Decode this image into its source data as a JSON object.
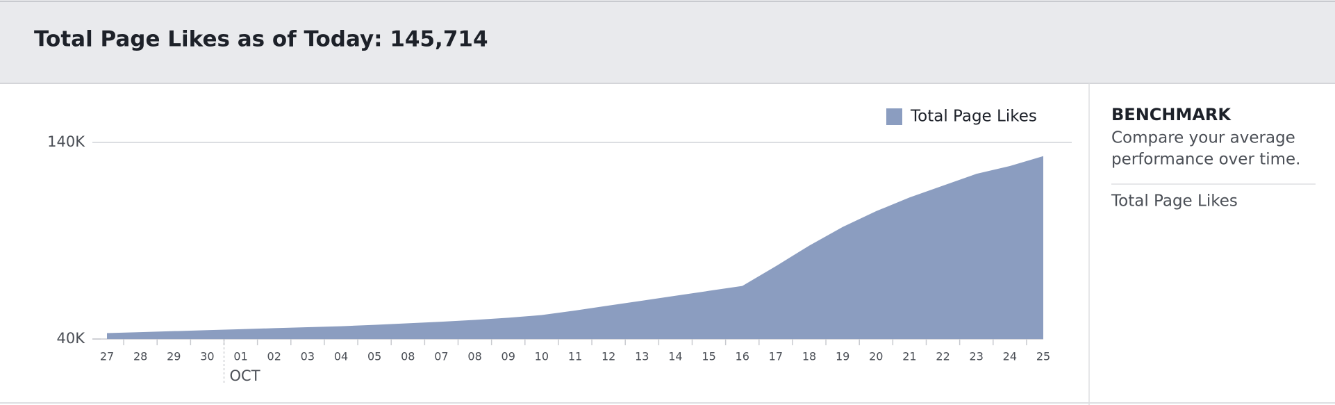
{
  "header": {
    "title": "Total Page Likes as of Today: 145,714"
  },
  "chart_data": {
    "type": "area",
    "categories": [
      "27",
      "28",
      "29",
      "30",
      "01",
      "02",
      "03",
      "04",
      "05",
      "08",
      "07",
      "08",
      "09",
      "10",
      "11",
      "12",
      "13",
      "14",
      "15",
      "16",
      "17",
      "18",
      "19",
      "20",
      "21",
      "22",
      "23",
      "24",
      "25"
    ],
    "series": [
      {
        "name": "Total Page Likes",
        "color": "#8b9dc0",
        "values": [
          43000,
          43500,
          44000,
          44500,
          45000,
          45500,
          46000,
          46500,
          47200,
          48000,
          48800,
          49700,
          50800,
          52200,
          54500,
          57000,
          59500,
          62000,
          64500,
          67000,
          77000,
          87500,
          97000,
          105000,
          112000,
          118000,
          124000,
          128000,
          133000
        ]
      }
    ],
    "ylim": [
      40000,
      140000
    ],
    "yticks": [
      {
        "value": 40000,
        "label": "40K"
      },
      {
        "value": 140000,
        "label": "140K"
      }
    ],
    "grid": true,
    "legend": "top-right",
    "annotations": [
      {
        "text": "OCT"
      }
    ]
  },
  "sidebar": {
    "heading": "BENCHMARK",
    "description": [
      "Compare your average",
      "performance over time."
    ],
    "items": [
      "Total Page Likes"
    ]
  }
}
